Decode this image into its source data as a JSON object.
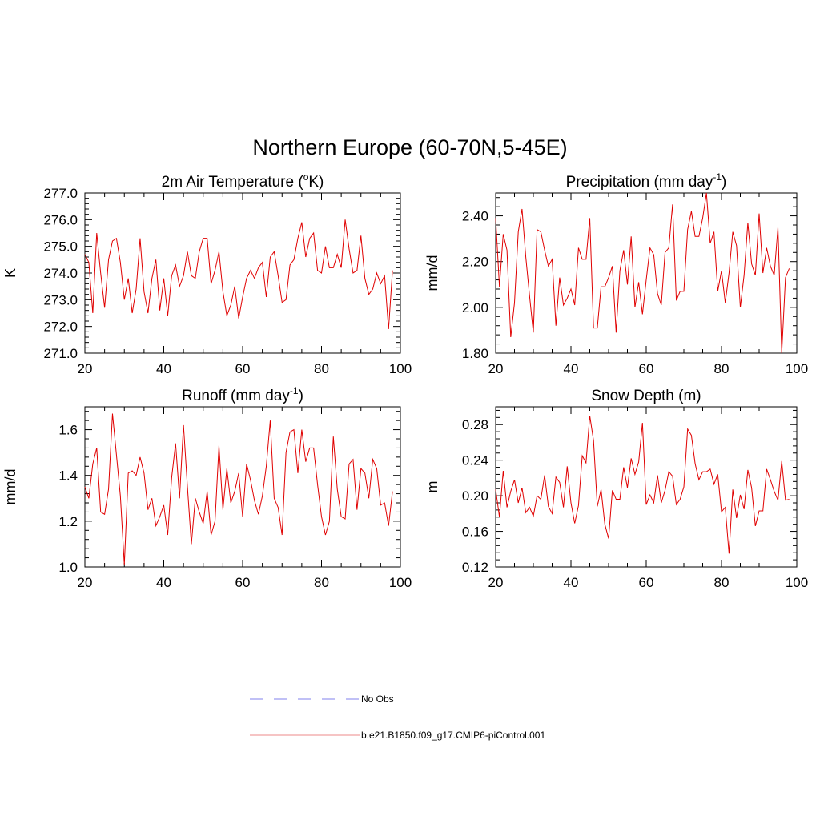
{
  "figure": {
    "title": "Northern Europe (60-70N,5-45E)"
  },
  "legend": {
    "entries": [
      {
        "label": "No Obs",
        "color": "#9a9af0",
        "style": "dashed"
      },
      {
        "label": "b.e21.B1850.f09_g17.CMIP6-piControl.001",
        "color": "#f0a0a0",
        "style": "solid"
      }
    ]
  },
  "chart_data": [
    {
      "type": "line",
      "title": "2m Air Temperature (",
      "title_sup": "o",
      "title_suffix": "K)",
      "ylabel": "K",
      "xlabel": "",
      "xlim": [
        20,
        100
      ],
      "ylim": [
        271.0,
        277.0
      ],
      "xticks": [
        "20",
        "40",
        "60",
        "80",
        "100"
      ],
      "yticks": [
        "271.0",
        "272.0",
        "273.0",
        "274.0",
        "275.0",
        "276.0",
        "277.0"
      ],
      "series": [
        {
          "name": "b.e21.B1850.f09_g17.CMIP6-piControl.001",
          "color": "#e00000",
          "x": [
            20,
            21,
            22,
            23,
            24,
            25,
            26,
            27,
            28,
            29,
            30,
            31,
            32,
            33,
            34,
            35,
            36,
            37,
            38,
            39,
            40,
            41,
            42,
            43,
            44,
            45,
            46,
            47,
            48,
            49,
            50,
            51,
            52,
            53,
            54,
            55,
            56,
            57,
            58,
            59,
            60,
            61,
            62,
            63,
            64,
            65,
            66,
            67,
            68,
            69,
            70,
            71,
            72,
            73,
            74,
            75,
            76,
            77,
            78,
            79,
            80,
            81,
            82,
            83,
            84,
            85,
            86,
            87,
            88,
            89,
            90,
            91,
            92,
            93,
            94,
            95,
            96,
            97,
            98
          ],
          "values": [
            274.7,
            274.4,
            272.5,
            275.5,
            274.0,
            272.7,
            274.5,
            275.2,
            275.3,
            274.4,
            273.0,
            273.8,
            272.5,
            273.4,
            275.3,
            273.3,
            272.5,
            273.8,
            274.5,
            272.6,
            273.8,
            272.4,
            273.9,
            274.3,
            273.5,
            273.9,
            274.8,
            273.9,
            273.8,
            274.8,
            275.3,
            275.3,
            273.6,
            274.1,
            274.8,
            273.3,
            272.4,
            272.8,
            273.5,
            272.3,
            273.1,
            273.8,
            274.1,
            273.8,
            274.2,
            274.4,
            273.1,
            274.6,
            274.8,
            273.9,
            272.9,
            273.0,
            274.3,
            274.5,
            275.3,
            275.9,
            274.6,
            275.3,
            275.5,
            274.1,
            274.0,
            275.0,
            274.2,
            274.2,
            274.7,
            274.2,
            276.0,
            274.9,
            274.0,
            274.1,
            275.4,
            273.8,
            273.2,
            273.4,
            274.0,
            273.6,
            273.9,
            271.9,
            274.1
          ]
        }
      ]
    },
    {
      "type": "line",
      "title": "Precipitation (mm day",
      "title_sup": "-1",
      "title_suffix": ")",
      "ylabel": "mm/d",
      "xlabel": "",
      "xlim": [
        20,
        100
      ],
      "ylim": [
        1.8,
        2.5
      ],
      "xticks": [
        "20",
        "40",
        "60",
        "80",
        "100"
      ],
      "yticks": [
        "1.80",
        "2.00",
        "2.20",
        "2.40"
      ],
      "series": [
        {
          "name": "b.e21.B1850.f09_g17.CMIP6-piControl.001",
          "color": "#e00000",
          "x": [
            20,
            21,
            22,
            23,
            24,
            25,
            26,
            27,
            28,
            29,
            30,
            31,
            32,
            33,
            34,
            35,
            36,
            37,
            38,
            39,
            40,
            41,
            42,
            43,
            44,
            45,
            46,
            47,
            48,
            49,
            50,
            51,
            52,
            53,
            54,
            55,
            56,
            57,
            58,
            59,
            60,
            61,
            62,
            63,
            64,
            65,
            66,
            67,
            68,
            69,
            70,
            71,
            72,
            73,
            74,
            75,
            76,
            77,
            78,
            79,
            80,
            81,
            82,
            83,
            84,
            85,
            86,
            87,
            88,
            89,
            90,
            91,
            92,
            93,
            94,
            95,
            96,
            97,
            98
          ],
          "values": [
            2.39,
            2.09,
            2.32,
            2.25,
            1.87,
            2.02,
            2.33,
            2.43,
            2.22,
            2.05,
            1.89,
            2.34,
            2.33,
            2.25,
            2.18,
            2.21,
            1.92,
            2.13,
            2.01,
            2.04,
            2.08,
            2.01,
            2.26,
            2.21,
            2.21,
            2.39,
            1.91,
            1.91,
            2.09,
            2.09,
            2.13,
            2.18,
            1.89,
            2.16,
            2.25,
            2.1,
            2.31,
            2.0,
            2.11,
            1.97,
            2.12,
            2.26,
            2.23,
            2.06,
            2.01,
            2.24,
            2.26,
            2.45,
            2.03,
            2.07,
            2.07,
            2.34,
            2.42,
            2.31,
            2.31,
            2.39,
            2.5,
            2.28,
            2.33,
            2.07,
            2.16,
            2.02,
            2.15,
            2.33,
            2.27,
            2.0,
            2.14,
            2.37,
            2.19,
            2.14,
            2.41,
            2.15,
            2.26,
            2.18,
            2.14,
            2.35,
            1.8,
            2.13,
            2.17
          ]
        }
      ]
    },
    {
      "type": "line",
      "title": "Runoff (mm day",
      "title_sup": "-1",
      "title_suffix": ")",
      "ylabel": "mm/d",
      "xlabel": "",
      "xlim": [
        20,
        100
      ],
      "ylim": [
        1.0,
        1.7
      ],
      "xticks": [
        "20",
        "40",
        "60",
        "80",
        "100"
      ],
      "yticks": [
        "1.0",
        "1.2",
        "1.4",
        "1.6"
      ],
      "series": [
        {
          "name": "b.e21.B1850.f09_g17.CMIP6-piControl.001",
          "color": "#e00000",
          "x": [
            20,
            21,
            22,
            23,
            24,
            25,
            26,
            27,
            28,
            29,
            30,
            31,
            32,
            33,
            34,
            35,
            36,
            37,
            38,
            39,
            40,
            41,
            42,
            43,
            44,
            45,
            46,
            47,
            48,
            49,
            50,
            51,
            52,
            53,
            54,
            55,
            56,
            57,
            58,
            59,
            60,
            61,
            62,
            63,
            64,
            65,
            66,
            67,
            68,
            69,
            70,
            71,
            72,
            73,
            74,
            75,
            76,
            77,
            78,
            79,
            80,
            81,
            82,
            83,
            84,
            85,
            86,
            87,
            88,
            89,
            90,
            91,
            92,
            93,
            94,
            95,
            96,
            97,
            98
          ],
          "values": [
            1.35,
            1.3,
            1.45,
            1.52,
            1.24,
            1.23,
            1.34,
            1.67,
            1.49,
            1.31,
            1.01,
            1.41,
            1.42,
            1.4,
            1.48,
            1.41,
            1.25,
            1.3,
            1.18,
            1.22,
            1.27,
            1.14,
            1.39,
            1.54,
            1.3,
            1.62,
            1.35,
            1.1,
            1.3,
            1.24,
            1.19,
            1.33,
            1.14,
            1.2,
            1.53,
            1.25,
            1.43,
            1.28,
            1.33,
            1.41,
            1.22,
            1.45,
            1.38,
            1.29,
            1.23,
            1.31,
            1.44,
            1.64,
            1.3,
            1.26,
            1.14,
            1.5,
            1.59,
            1.6,
            1.41,
            1.6,
            1.46,
            1.52,
            1.52,
            1.36,
            1.22,
            1.14,
            1.2,
            1.57,
            1.34,
            1.22,
            1.21,
            1.45,
            1.47,
            1.25,
            1.43,
            1.41,
            1.3,
            1.47,
            1.43,
            1.27,
            1.28,
            1.18,
            1.33
          ]
        }
      ]
    },
    {
      "type": "line",
      "title": "Snow Depth (m)",
      "title_sup": "",
      "title_suffix": "",
      "ylabel": "m",
      "xlabel": "",
      "xlim": [
        20,
        100
      ],
      "ylim": [
        0.12,
        0.3
      ],
      "xticks": [
        "20",
        "40",
        "60",
        "80",
        "100"
      ],
      "yticks": [
        "0.12",
        "0.16",
        "0.20",
        "0.24",
        "0.28"
      ],
      "series": [
        {
          "name": "b.e21.B1850.f09_g17.CMIP6-piControl.001",
          "color": "#e00000",
          "x": [
            20,
            21,
            22,
            23,
            24,
            25,
            26,
            27,
            28,
            29,
            30,
            31,
            32,
            33,
            34,
            35,
            36,
            37,
            38,
            39,
            40,
            41,
            42,
            43,
            44,
            45,
            46,
            47,
            48,
            49,
            50,
            51,
            52,
            53,
            54,
            55,
            56,
            57,
            58,
            59,
            60,
            61,
            62,
            63,
            64,
            65,
            66,
            67,
            68,
            69,
            70,
            71,
            72,
            73,
            74,
            75,
            76,
            77,
            78,
            79,
            80,
            81,
            82,
            83,
            84,
            85,
            86,
            87,
            88,
            89,
            90,
            91,
            92,
            93,
            94,
            95,
            96,
            97,
            98
          ],
          "values": [
            0.207,
            0.176,
            0.228,
            0.187,
            0.205,
            0.218,
            0.192,
            0.209,
            0.181,
            0.187,
            0.177,
            0.2,
            0.196,
            0.223,
            0.188,
            0.18,
            0.221,
            0.215,
            0.187,
            0.233,
            0.192,
            0.169,
            0.189,
            0.245,
            0.237,
            0.29,
            0.262,
            0.188,
            0.207,
            0.168,
            0.152,
            0.206,
            0.196,
            0.196,
            0.232,
            0.209,
            0.242,
            0.224,
            0.238,
            0.282,
            0.19,
            0.201,
            0.192,
            0.223,
            0.192,
            0.206,
            0.227,
            0.222,
            0.19,
            0.196,
            0.21,
            0.275,
            0.268,
            0.236,
            0.218,
            0.227,
            0.227,
            0.23,
            0.213,
            0.224,
            0.182,
            0.187,
            0.135,
            0.207,
            0.175,
            0.201,
            0.185,
            0.229,
            0.209,
            0.166,
            0.183,
            0.183,
            0.23,
            0.218,
            0.205,
            0.195,
            0.239,
            0.195,
            0.196
          ]
        }
      ]
    }
  ]
}
